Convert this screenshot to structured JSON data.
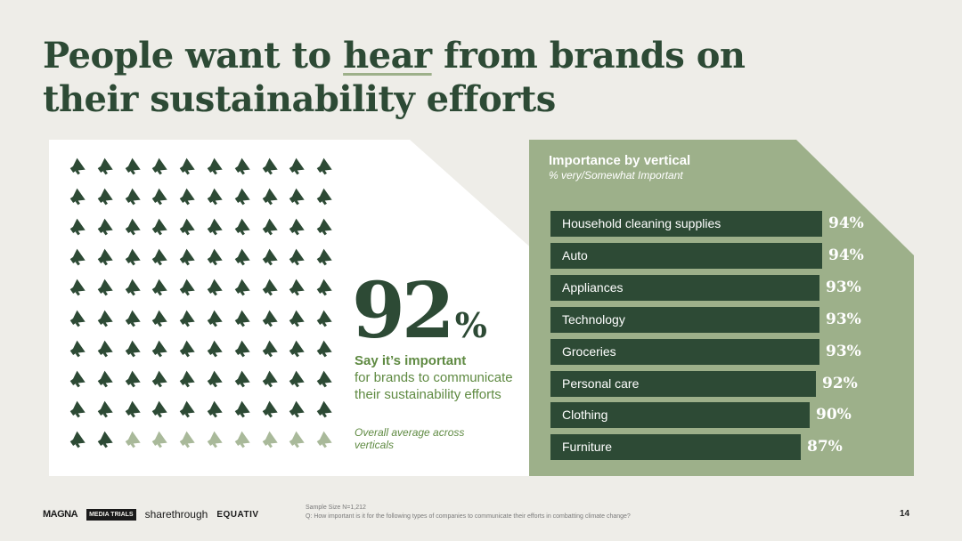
{
  "title": {
    "before": "People want to ",
    "highlight": "hear",
    "after": " from brands on their sustainability efforts"
  },
  "stat": {
    "number": "92",
    "percent_sign": "%",
    "heading": "Say it’s important",
    "body": "for brands to communicate their sustainability efforts",
    "note": "Overall average across verticals",
    "icon_total": 100,
    "icon_filled": 92,
    "icon_name": "megaphone-icon",
    "colors": {
      "filled": "#2d4a35",
      "empty": "#a9b99a"
    }
  },
  "chart_data": {
    "type": "bar",
    "title": "Importance by vertical",
    "subtitle": "% very/Somewhat Important",
    "categories": [
      "Household cleaning supplies",
      "Auto",
      "Appliances",
      "Technology",
      "Groceries",
      "Personal care",
      "Clothing",
      "Furniture"
    ],
    "values": [
      94,
      94,
      93,
      93,
      93,
      92,
      90,
      87
    ],
    "value_labels": [
      "94%",
      "94%",
      "93%",
      "93%",
      "93%",
      "92%",
      "90%",
      "87%"
    ],
    "orientation": "horizontal",
    "xlim": [
      0,
      100
    ],
    "colors": {
      "bar": "#2d4a35",
      "panel": "#9db08a"
    }
  },
  "footer": {
    "logos": [
      "MAGNA",
      "MEDIA TRIALS",
      "sharethrough",
      "EQUATIV"
    ],
    "sample_size": "Sample Size N=1,212",
    "question": "Q: How important is it for the following types of companies to communicate their efforts in combatting climate change?",
    "page_number": "14"
  }
}
